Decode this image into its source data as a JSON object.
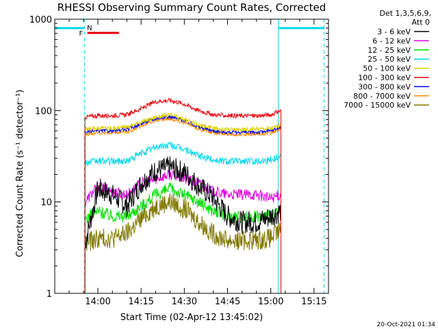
{
  "chart_data": {
    "type": "line",
    "title": "RHESSI Observing Summary Count Rates, Corrected",
    "xlabel": "Start Time (02-Apr-12 13:45:02)",
    "ylabel": "Corrected Count Rate (s⁻¹ detector⁻¹)",
    "yscale": "log",
    "ylim": [
      1,
      1000
    ],
    "xlim_minutes": [
      0,
      95
    ],
    "x_ticks": [
      "14:00",
      "14:15",
      "14:30",
      "14:45",
      "15:00",
      "15:15"
    ],
    "y_ticks": [
      "1",
      "10",
      "100",
      "1000"
    ],
    "grid": false,
    "legend_header": [
      "Det 1,3,5,6,9,",
      "Att 0"
    ],
    "legend_placement": "right",
    "timestamp": "20-Oct-2021 01:34",
    "flags": [
      {
        "label": "F",
        "color": "#e8000b"
      },
      {
        "label": "N",
        "color": "#00cfe8"
      }
    ],
    "series": [
      {
        "name": "3 - 6 keV",
        "color": "#000000",
        "x": [
          10.5,
          15,
          20,
          25,
          30,
          35,
          40,
          45,
          50,
          55,
          60,
          65,
          70,
          75,
          78.5
        ],
        "values": [
          3.5,
          14,
          12,
          9,
          16,
          22,
          24,
          21,
          15,
          11,
          7,
          6,
          6,
          7,
          8
        ]
      },
      {
        "name": "6 - 12 keV",
        "color": "#e000e0",
        "x": [
          10.5,
          15,
          20,
          25,
          30,
          35,
          40,
          45,
          50,
          55,
          60,
          65,
          70,
          75,
          78.5
        ],
        "values": [
          10,
          15,
          13,
          12,
          16,
          18,
          20,
          18,
          16,
          13,
          12,
          12,
          12,
          11,
          12
        ]
      },
      {
        "name": "12 - 25 keV",
        "color": "#00e000",
        "x": [
          10.5,
          15,
          20,
          25,
          30,
          35,
          40,
          45,
          50,
          55,
          60,
          65,
          70,
          75,
          78.5
        ],
        "values": [
          6.5,
          8,
          7,
          7,
          9,
          12,
          14,
          12,
          10,
          8,
          7,
          7,
          7,
          7,
          8
        ]
      },
      {
        "name": "25 - 50 keV",
        "color": "#00d8e8",
        "x": [
          10.5,
          15,
          20,
          25,
          30,
          35,
          40,
          45,
          50,
          55,
          60,
          65,
          70,
          75,
          78.5
        ],
        "values": [
          27,
          28,
          28,
          28,
          34,
          40,
          42,
          38,
          32,
          29,
          28,
          28,
          28,
          29,
          32
        ]
      },
      {
        "name": "50 - 100 keV",
        "color": "#e0d000",
        "x": [
          10.5,
          15,
          20,
          25,
          30,
          35,
          40,
          45,
          50,
          55,
          60,
          65,
          70,
          75,
          78.5
        ],
        "values": [
          62,
          65,
          64,
          66,
          75,
          85,
          90,
          80,
          70,
          64,
          62,
          62,
          63,
          64,
          70
        ]
      },
      {
        "name": "100 - 300 keV",
        "color": "#e8000b",
        "x": [
          10.5,
          15,
          20,
          25,
          30,
          35,
          40,
          45,
          50,
          55,
          60,
          65,
          70,
          75,
          78.5
        ],
        "values": [
          85,
          88,
          88,
          90,
          105,
          125,
          130,
          118,
          100,
          90,
          88,
          88,
          88,
          90,
          100
        ]
      },
      {
        "name": "300 - 800 keV",
        "color": "#0000e0",
        "x": [
          10.5,
          15,
          20,
          25,
          30,
          35,
          40,
          45,
          50,
          55,
          60,
          65,
          70,
          75,
          78.5
        ],
        "values": [
          58,
          60,
          60,
          62,
          72,
          82,
          86,
          78,
          66,
          60,
          58,
          58,
          58,
          60,
          66
        ]
      },
      {
        "name": "800 - 7000 keV",
        "color": "#ff8c00",
        "x": [
          10.5,
          15,
          20,
          25,
          30,
          35,
          40,
          45,
          50,
          55,
          60,
          65,
          70,
          75,
          78.5
        ],
        "values": [
          55,
          57,
          57,
          58,
          68,
          78,
          82,
          74,
          63,
          57,
          55,
          55,
          55,
          57,
          62
        ]
      },
      {
        "name": "7000 - 15000 keV",
        "color": "#807800",
        "x": [
          10.5,
          15,
          20,
          25,
          30,
          35,
          40,
          45,
          50,
          55,
          60,
          65,
          70,
          75,
          78.5
        ],
        "values": [
          3.5,
          4,
          4,
          4.5,
          6.5,
          9,
          10,
          8.5,
          6,
          4.5,
          3.8,
          3.8,
          3.8,
          4,
          5
        ]
      }
    ]
  }
}
